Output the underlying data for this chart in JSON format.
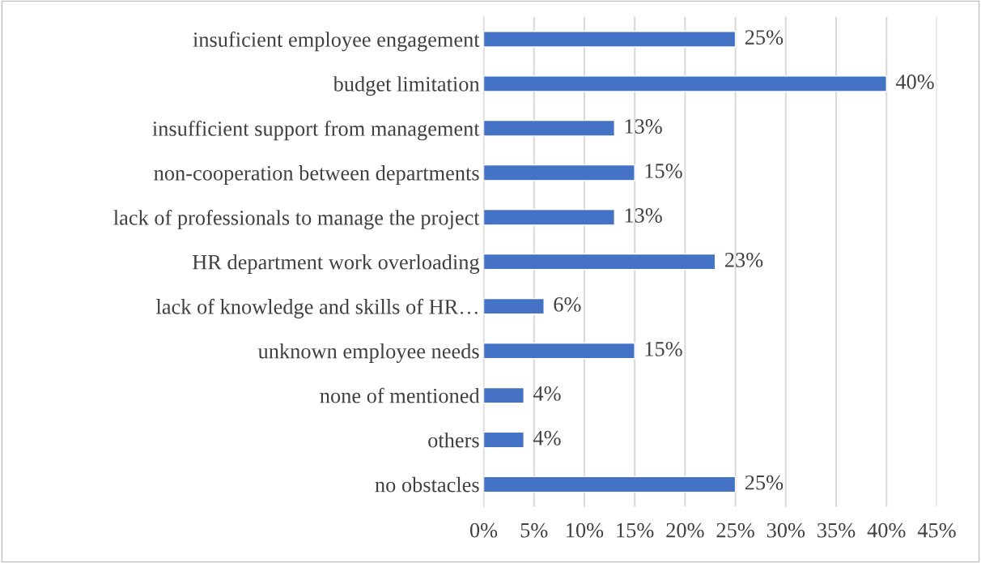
{
  "chart_data": {
    "type": "bar",
    "orientation": "horizontal",
    "categories": [
      "insuficient employee engagement",
      "budget limitation",
      "insufficient support from management",
      "non-cooperation between departments",
      "lack of professionals to manage the project",
      "HR department work overloading",
      "lack of knowledge and skills of HR…",
      "unknown employee needs",
      "none of mentioned",
      "others",
      "no obstacles"
    ],
    "values": [
      25,
      40,
      13,
      15,
      13,
      23,
      6,
      15,
      4,
      4,
      25
    ],
    "value_labels": [
      "25%",
      "40%",
      "13%",
      "15%",
      "13%",
      "23%",
      "6%",
      "15%",
      "4%",
      "4%",
      "25%"
    ],
    "color": "#4472c4",
    "xlim": [
      0,
      45
    ],
    "xticks": [
      {
        "value": 0,
        "label": "0%"
      },
      {
        "value": 5,
        "label": "5%"
      },
      {
        "value": 10,
        "label": "10%"
      },
      {
        "value": 15,
        "label": "15%"
      },
      {
        "value": 20,
        "label": "20%"
      },
      {
        "value": 25,
        "label": "25%"
      },
      {
        "value": 30,
        "label": "30%"
      },
      {
        "value": 35,
        "label": "35%"
      },
      {
        "value": 40,
        "label": "40%"
      },
      {
        "value": 45,
        "label": "45%"
      }
    ],
    "grid": "x"
  }
}
